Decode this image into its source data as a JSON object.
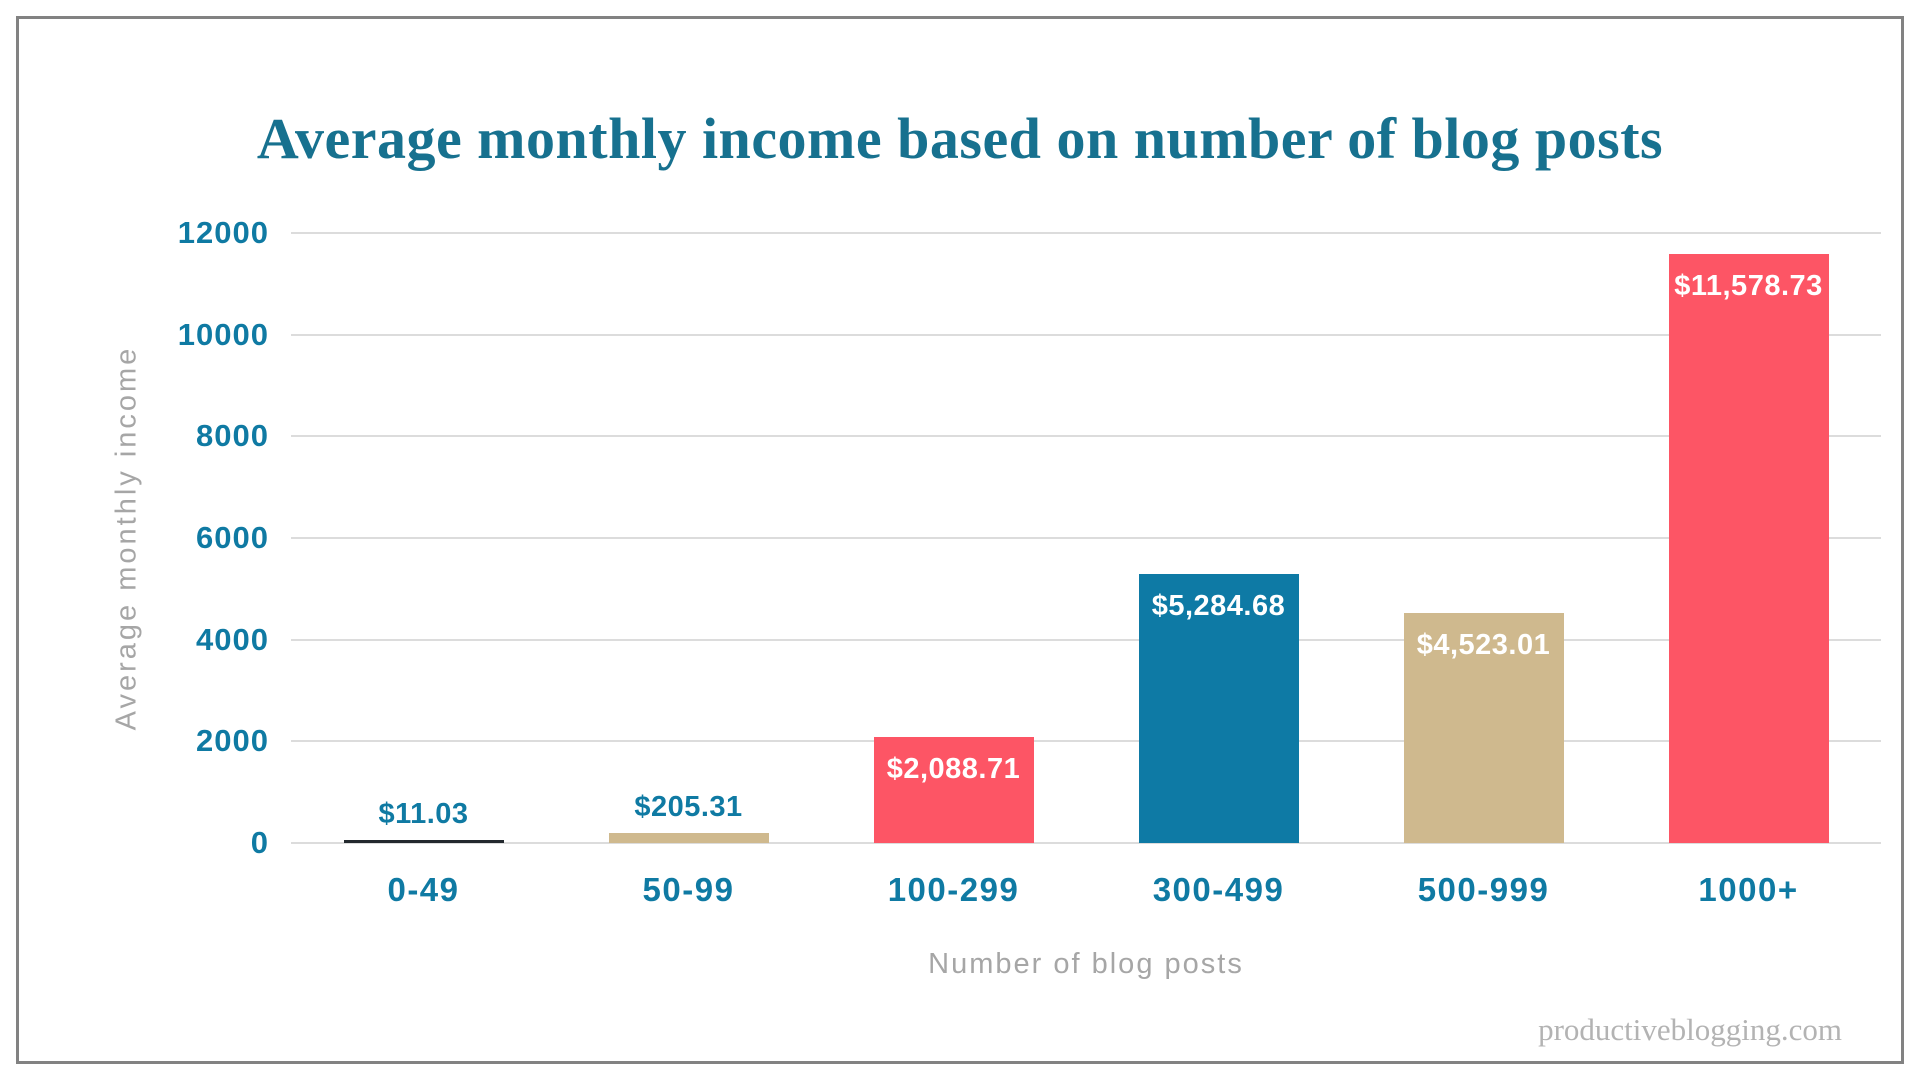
{
  "chart_data": {
    "type": "bar",
    "title": "Average monthly income based on number of blog posts",
    "xlabel": "Number of blog posts",
    "ylabel": "Average monthly income",
    "categories": [
      "0-49",
      "50-99",
      "100-299",
      "300-499",
      "500-999",
      "1000+"
    ],
    "values": [
      11.03,
      205.31,
      2088.71,
      5284.68,
      4523.01,
      11578.73
    ],
    "value_labels": [
      "$11.03",
      "$205.31",
      "$2,088.71",
      "$5,284.68",
      "$4,523.01",
      "$11,578.73"
    ],
    "bar_colors": [
      "#23292e",
      "#cfb98e",
      "#fd5565",
      "#0e7aa5",
      "#cfb98e",
      "#fd5565"
    ],
    "yticks": [
      0,
      2000,
      4000,
      6000,
      8000,
      10000,
      12000
    ],
    "ylim": [
      0,
      12000
    ],
    "grid": true,
    "legend": "none"
  },
  "colors": {
    "title_teal": "#17718f",
    "tick_teal": "#0f7aa3",
    "axis_gray": "#a6a6a6",
    "gridline_gray": "#dcdcdc",
    "frame_border_gray": "#828282",
    "watermark_gray": "#b3b3b3",
    "bar_label_white": "#ffffff"
  },
  "footer": {
    "watermark": "productiveblogging.com"
  }
}
